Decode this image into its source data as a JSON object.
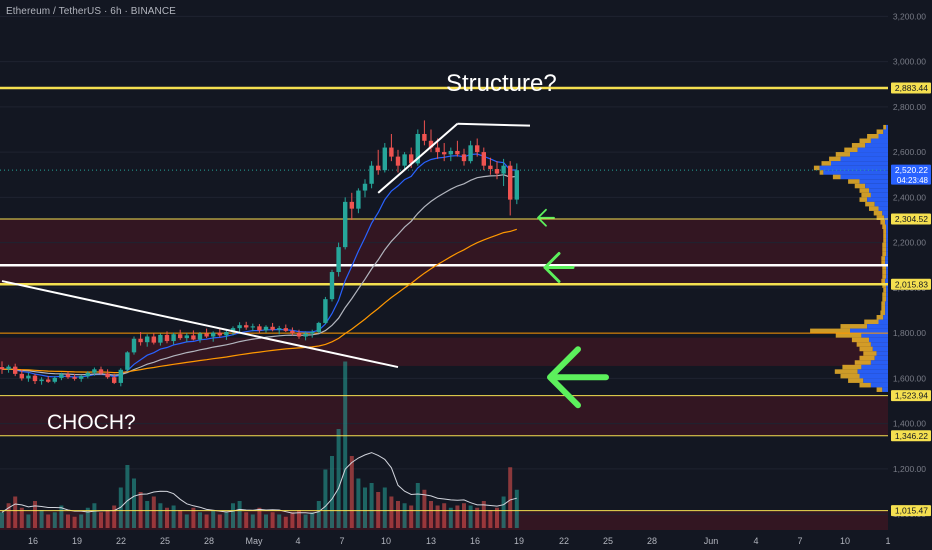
{
  "header": {
    "title": "Ethereum / TetherUS · 6h · BINANCE"
  },
  "annotations": {
    "structure": "Structure?",
    "choch": "CHOCH?"
  },
  "colors": {
    "background": "#131722",
    "bull": "#26a69a",
    "bear": "#ef5350",
    "level_yellow": "#f5e050",
    "level_orange": "#ff9800",
    "ema_fast": "#2962ff",
    "ema_mid": "#b2b5be",
    "ema_slow": "#ff9800",
    "arrow": "#5cf05c",
    "volume_profile_blue": "#2962ff",
    "volume_profile_yellow": "#f0b429",
    "zone": "#3a1622"
  },
  "chart_data": {
    "type": "candlestick",
    "symbol": "Ethereum / TetherUS",
    "interval": "6h",
    "exchange": "BINANCE",
    "y_axis": {
      "range": [
        930,
        3250
      ],
      "tick_labels": [
        "3,200.00",
        "3,000.00",
        "2,800.00",
        "2,600.00",
        "2,400.00",
        "2,200.00",
        "2,000.00",
        "1,800.00",
        "1,600.00",
        "1,400.00",
        "1,200.00",
        "1,000.00"
      ],
      "tick_values": [
        3200,
        3000,
        2800,
        2600,
        2400,
        2200,
        2000,
        1800,
        1600,
        1400,
        1200,
        1000
      ]
    },
    "x_axis": {
      "tick_labels": [
        "16",
        "19",
        "22",
        "25",
        "28",
        "May",
        "4",
        "7",
        "10",
        "13",
        "16",
        "19",
        "22",
        "25",
        "28",
        "Jun",
        "4",
        "7",
        "10",
        "1"
      ]
    },
    "price_labels": [
      {
        "text": "2,883.44",
        "value": 2883.44,
        "style": "yellow"
      },
      {
        "text": "2,520.22",
        "value": 2520.22,
        "style": "current",
        "countdown": "04:23:48"
      },
      {
        "text": "2,304.52",
        "value": 2304.52,
        "style": "yellow"
      },
      {
        "text": "2,015.83",
        "value": 2015.83,
        "style": "yellow"
      },
      {
        "text": "1,523.94",
        "value": 1523.94,
        "style": "yellow"
      },
      {
        "text": "1,346.22",
        "value": 1346.22,
        "style": "yellow"
      },
      {
        "text": "1,015.47",
        "value": 1015.47,
        "style": "yellow"
      }
    ],
    "horizontal_levels": [
      {
        "value": 2883.44,
        "color": "yellow",
        "width": "thick"
      },
      {
        "value": 2304.52,
        "color": "yellow",
        "width": "thin"
      },
      {
        "value": 2100,
        "color": "white",
        "width": "thick"
      },
      {
        "value": 2015.83,
        "color": "yellow",
        "width": "thick"
      },
      {
        "value": 1800,
        "color": "orange",
        "width": "thin"
      },
      {
        "value": 1523.94,
        "color": "yellow",
        "width": "thin"
      },
      {
        "value": 1346.22,
        "color": "yellow",
        "width": "thin"
      },
      {
        "value": 1015.47,
        "color": "yellow",
        "width": "thin"
      }
    ],
    "zones": [
      {
        "from": 2304.52,
        "to": 2100
      },
      {
        "from": 2100,
        "to": 2015.83
      },
      {
        "from": 1780,
        "to": 1655
      },
      {
        "from": 1523.94,
        "to": 1346.22
      },
      {
        "from": 1015.47,
        "to": 930
      }
    ],
    "trendlines": [
      {
        "from": [
          0,
          2030
        ],
        "to": [
          60,
          1650
        ],
        "color": "white"
      },
      {
        "from": [
          57,
          2420
        ],
        "to": [
          69,
          2725
        ],
        "color": "white"
      },
      {
        "from": [
          69,
          2725
        ],
        "to": [
          80,
          2717
        ],
        "color": "white"
      }
    ],
    "arrows": [
      {
        "at_value": 2310,
        "size": "small"
      },
      {
        "at_value": 2090,
        "size": "medium"
      },
      {
        "at_value": 1605,
        "size": "large"
      }
    ],
    "candles": [
      [
        1650,
        1675,
        1620,
        1640
      ],
      [
        1640,
        1660,
        1625,
        1652
      ],
      [
        1652,
        1665,
        1610,
        1620
      ],
      [
        1620,
        1640,
        1590,
        1600
      ],
      [
        1600,
        1625,
        1585,
        1612
      ],
      [
        1612,
        1620,
        1575,
        1588
      ],
      [
        1588,
        1605,
        1572,
        1595
      ],
      [
        1595,
        1610,
        1580,
        1585
      ],
      [
        1585,
        1610,
        1578,
        1602
      ],
      [
        1602,
        1625,
        1592,
        1618
      ],
      [
        1618,
        1632,
        1598,
        1605
      ],
      [
        1605,
        1620,
        1590,
        1598
      ],
      [
        1598,
        1615,
        1585,
        1610
      ],
      [
        1610,
        1632,
        1600,
        1625
      ],
      [
        1625,
        1648,
        1612,
        1640
      ],
      [
        1640,
        1652,
        1615,
        1622
      ],
      [
        1622,
        1640,
        1598,
        1605
      ],
      [
        1605,
        1620,
        1575,
        1580
      ],
      [
        1580,
        1645,
        1565,
        1638
      ],
      [
        1638,
        1720,
        1630,
        1715
      ],
      [
        1715,
        1785,
        1705,
        1775
      ],
      [
        1775,
        1805,
        1745,
        1760
      ],
      [
        1760,
        1795,
        1740,
        1785
      ],
      [
        1785,
        1800,
        1750,
        1758
      ],
      [
        1758,
        1798,
        1745,
        1792
      ],
      [
        1792,
        1808,
        1755,
        1765
      ],
      [
        1765,
        1802,
        1750,
        1795
      ],
      [
        1795,
        1815,
        1770,
        1778
      ],
      [
        1778,
        1800,
        1760,
        1790
      ],
      [
        1790,
        1812,
        1768,
        1772
      ],
      [
        1772,
        1805,
        1758,
        1798
      ],
      [
        1798,
        1820,
        1778,
        1785
      ],
      [
        1785,
        1808,
        1762,
        1802
      ],
      [
        1802,
        1822,
        1782,
        1790
      ],
      [
        1790,
        1812,
        1770,
        1805
      ],
      [
        1805,
        1830,
        1790,
        1822
      ],
      [
        1822,
        1848,
        1805,
        1835
      ],
      [
        1835,
        1850,
        1815,
        1825
      ],
      [
        1825,
        1842,
        1808,
        1830
      ],
      [
        1830,
        1840,
        1800,
        1812
      ],
      [
        1812,
        1835,
        1802,
        1828
      ],
      [
        1828,
        1845,
        1808,
        1815
      ],
      [
        1815,
        1832,
        1795,
        1822
      ],
      [
        1822,
        1838,
        1805,
        1810
      ],
      [
        1810,
        1825,
        1790,
        1800
      ],
      [
        1800,
        1815,
        1775,
        1785
      ],
      [
        1785,
        1808,
        1768,
        1798
      ],
      [
        1798,
        1815,
        1780,
        1805
      ],
      [
        1805,
        1850,
        1800,
        1845
      ],
      [
        1845,
        1960,
        1840,
        1950
      ],
      [
        1950,
        2080,
        1940,
        2070
      ],
      [
        2070,
        2200,
        2050,
        2180
      ],
      [
        2180,
        2400,
        2170,
        2380
      ],
      [
        2380,
        2420,
        2300,
        2350
      ],
      [
        2350,
        2440,
        2330,
        2430
      ],
      [
        2430,
        2480,
        2400,
        2460
      ],
      [
        2460,
        2560,
        2440,
        2540
      ],
      [
        2540,
        2610,
        2500,
        2520
      ],
      [
        2520,
        2640,
        2510,
        2620
      ],
      [
        2620,
        2680,
        2560,
        2580
      ],
      [
        2580,
        2610,
        2510,
        2540
      ],
      [
        2540,
        2600,
        2520,
        2590
      ],
      [
        2590,
        2620,
        2530,
        2550
      ],
      [
        2550,
        2700,
        2540,
        2680
      ],
      [
        2680,
        2740,
        2630,
        2650
      ],
      [
        2650,
        2700,
        2600,
        2620
      ],
      [
        2620,
        2660,
        2570,
        2600
      ],
      [
        2600,
        2640,
        2560,
        2590
      ],
      [
        2590,
        2620,
        2560,
        2605
      ],
      [
        2605,
        2650,
        2580,
        2590
      ],
      [
        2590,
        2615,
        2540,
        2560
      ],
      [
        2560,
        2650,
        2550,
        2630
      ],
      [
        2630,
        2660,
        2580,
        2600
      ],
      [
        2600,
        2620,
        2520,
        2540
      ],
      [
        2540,
        2575,
        2500,
        2525
      ],
      [
        2525,
        2560,
        2480,
        2505
      ],
      [
        2505,
        2570,
        2450,
        2540
      ],
      [
        2540,
        2560,
        2320,
        2390
      ],
      [
        2390,
        2550,
        2370,
        2520
      ]
    ],
    "volume": [
      {
        "v": 0.35,
        "up": true
      },
      {
        "v": 0.55,
        "up": false
      },
      {
        "v": 0.7,
        "up": false
      },
      {
        "v": 0.45,
        "up": false
      },
      {
        "v": 0.3,
        "up": true
      },
      {
        "v": 0.6,
        "up": false
      },
      {
        "v": 0.4,
        "up": true
      },
      {
        "v": 0.3,
        "up": false
      },
      {
        "v": 0.35,
        "up": true
      },
      {
        "v": 0.5,
        "up": true
      },
      {
        "v": 0.3,
        "up": false
      },
      {
        "v": 0.25,
        "up": false
      },
      {
        "v": 0.3,
        "up": true
      },
      {
        "v": 0.45,
        "up": true
      },
      {
        "v": 0.55,
        "up": true
      },
      {
        "v": 0.35,
        "up": false
      },
      {
        "v": 0.4,
        "up": false
      },
      {
        "v": 0.5,
        "up": false
      },
      {
        "v": 0.9,
        "up": true
      },
      {
        "v": 1.4,
        "up": true
      },
      {
        "v": 1.1,
        "up": true
      },
      {
        "v": 0.8,
        "up": false
      },
      {
        "v": 0.6,
        "up": true
      },
      {
        "v": 0.7,
        "up": false
      },
      {
        "v": 0.55,
        "up": true
      },
      {
        "v": 0.45,
        "up": false
      },
      {
        "v": 0.5,
        "up": true
      },
      {
        "v": 0.4,
        "up": false
      },
      {
        "v": 0.3,
        "up": true
      },
      {
        "v": 0.45,
        "up": false
      },
      {
        "v": 0.35,
        "up": true
      },
      {
        "v": 0.3,
        "up": false
      },
      {
        "v": 0.4,
        "up": true
      },
      {
        "v": 0.3,
        "up": false
      },
      {
        "v": 0.35,
        "up": true
      },
      {
        "v": 0.55,
        "up": true
      },
      {
        "v": 0.6,
        "up": true
      },
      {
        "v": 0.35,
        "up": false
      },
      {
        "v": 0.3,
        "up": true
      },
      {
        "v": 0.45,
        "up": false
      },
      {
        "v": 0.3,
        "up": true
      },
      {
        "v": 0.35,
        "up": false
      },
      {
        "v": 0.3,
        "up": true
      },
      {
        "v": 0.25,
        "up": false
      },
      {
        "v": 0.35,
        "up": false
      },
      {
        "v": 0.4,
        "up": false
      },
      {
        "v": 0.3,
        "up": true
      },
      {
        "v": 0.35,
        "up": true
      },
      {
        "v": 0.6,
        "up": true
      },
      {
        "v": 1.3,
        "up": true
      },
      {
        "v": 1.6,
        "up": true
      },
      {
        "v": 2.2,
        "up": true
      },
      {
        "v": 3.7,
        "up": true
      },
      {
        "v": 1.6,
        "up": false
      },
      {
        "v": 1.1,
        "up": true
      },
      {
        "v": 0.9,
        "up": true
      },
      {
        "v": 1.0,
        "up": true
      },
      {
        "v": 0.8,
        "up": false
      },
      {
        "v": 0.9,
        "up": true
      },
      {
        "v": 0.7,
        "up": false
      },
      {
        "v": 0.6,
        "up": false
      },
      {
        "v": 0.55,
        "up": true
      },
      {
        "v": 0.5,
        "up": false
      },
      {
        "v": 1.0,
        "up": true
      },
      {
        "v": 0.85,
        "up": false
      },
      {
        "v": 0.6,
        "up": false
      },
      {
        "v": 0.5,
        "up": false
      },
      {
        "v": 0.55,
        "up": false
      },
      {
        "v": 0.45,
        "up": true
      },
      {
        "v": 0.5,
        "up": false
      },
      {
        "v": 0.55,
        "up": false
      },
      {
        "v": 0.5,
        "up": true
      },
      {
        "v": 0.45,
        "up": false
      },
      {
        "v": 0.6,
        "up": false
      },
      {
        "v": 0.4,
        "up": false
      },
      {
        "v": 0.45,
        "up": false
      },
      {
        "v": 0.7,
        "up": true
      },
      {
        "v": 1.35,
        "up": false
      },
      {
        "v": 0.85,
        "up": true
      }
    ],
    "volume_profile": [
      [
        2700,
        2720,
        0.05,
        0.02
      ],
      [
        2680,
        2700,
        0.12,
        0.05
      ],
      [
        2660,
        2680,
        0.22,
        0.1
      ],
      [
        2640,
        2660,
        0.3,
        0.18
      ],
      [
        2620,
        2640,
        0.38,
        0.24
      ],
      [
        2600,
        2620,
        0.46,
        0.32
      ],
      [
        2580,
        2600,
        0.55,
        0.4
      ],
      [
        2560,
        2580,
        0.62,
        0.5
      ],
      [
        2540,
        2560,
        0.7,
        0.6
      ],
      [
        2520,
        2540,
        0.78,
        0.72
      ],
      [
        2500,
        2520,
        0.72,
        0.68
      ],
      [
        2480,
        2500,
        0.58,
        0.5
      ],
      [
        2460,
        2480,
        0.42,
        0.3
      ],
      [
        2440,
        2460,
        0.35,
        0.24
      ],
      [
        2420,
        2440,
        0.3,
        0.2
      ],
      [
        2400,
        2420,
        0.28,
        0.18
      ],
      [
        2380,
        2400,
        0.3,
        0.22
      ],
      [
        2360,
        2380,
        0.24,
        0.14
      ],
      [
        2340,
        2360,
        0.2,
        0.1
      ],
      [
        2320,
        2340,
        0.15,
        0.06
      ],
      [
        2300,
        2320,
        0.12,
        0.04
      ],
      [
        2280,
        2300,
        0.08,
        0.03
      ],
      [
        2260,
        2280,
        0.06,
        0.02
      ],
      [
        2240,
        2260,
        0.05,
        0.02
      ],
      [
        2220,
        2240,
        0.05,
        0.02
      ],
      [
        2200,
        2220,
        0.05,
        0.02
      ],
      [
        2180,
        2200,
        0.06,
        0.02
      ],
      [
        2160,
        2180,
        0.06,
        0.02
      ],
      [
        2140,
        2160,
        0.06,
        0.02
      ],
      [
        2120,
        2140,
        0.07,
        0.03
      ],
      [
        2100,
        2120,
        0.07,
        0.03
      ],
      [
        2080,
        2100,
        0.06,
        0.02
      ],
      [
        2060,
        2080,
        0.06,
        0.02
      ],
      [
        2040,
        2060,
        0.06,
        0.02
      ],
      [
        2020,
        2040,
        0.07,
        0.03
      ],
      [
        2000,
        2020,
        0.06,
        0.02
      ],
      [
        1980,
        2000,
        0.05,
        0.02
      ],
      [
        1960,
        1980,
        0.06,
        0.02
      ],
      [
        1940,
        1960,
        0.06,
        0.02
      ],
      [
        1920,
        1940,
        0.07,
        0.03
      ],
      [
        1900,
        1920,
        0.07,
        0.03
      ],
      [
        1880,
        1900,
        0.08,
        0.03
      ],
      [
        1860,
        1880,
        0.12,
        0.05
      ],
      [
        1840,
        1860,
        0.25,
        0.1
      ],
      [
        1820,
        1840,
        0.5,
        0.22
      ],
      [
        1800,
        1820,
        0.82,
        0.4
      ],
      [
        1780,
        1800,
        0.55,
        0.28
      ],
      [
        1760,
        1780,
        0.38,
        0.2
      ],
      [
        1740,
        1760,
        0.33,
        0.18
      ],
      [
        1720,
        1740,
        0.3,
        0.16
      ],
      [
        1700,
        1720,
        0.26,
        0.12
      ],
      [
        1680,
        1700,
        0.3,
        0.14
      ],
      [
        1660,
        1680,
        0.35,
        0.18
      ],
      [
        1640,
        1660,
        0.48,
        0.28
      ],
      [
        1620,
        1640,
        0.56,
        0.32
      ],
      [
        1600,
        1620,
        0.5,
        0.3
      ],
      [
        1580,
        1600,
        0.42,
        0.26
      ],
      [
        1560,
        1580,
        0.3,
        0.18
      ],
      [
        1540,
        1560,
        0.12,
        0.06
      ]
    ]
  }
}
